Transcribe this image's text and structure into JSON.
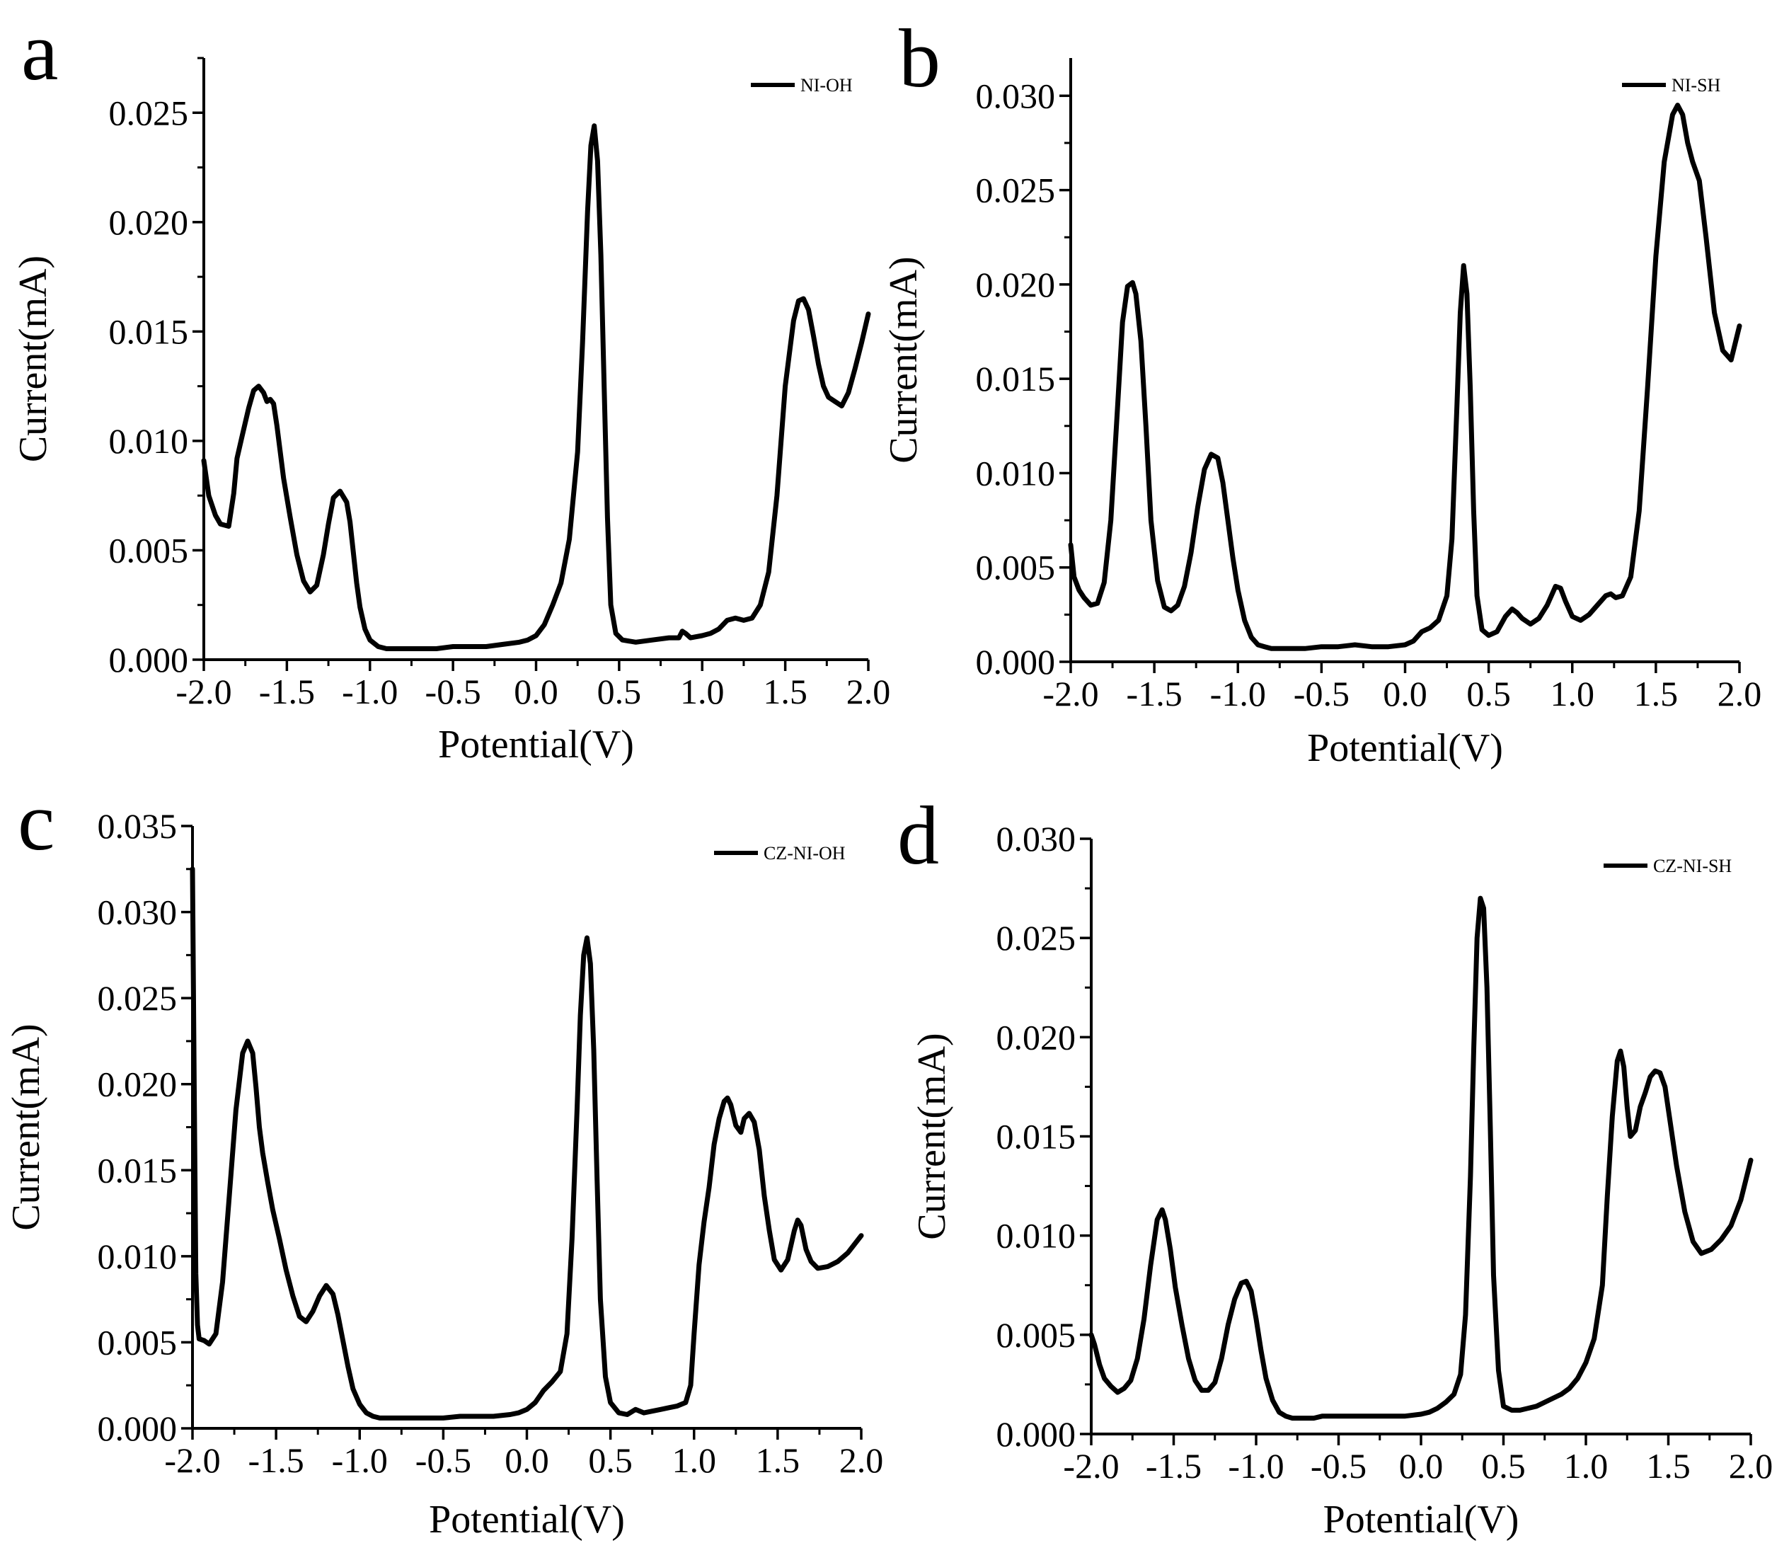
{
  "figure": {
    "description_free": true
  },
  "chart_data": [
    {
      "type": "line",
      "panel_label": "a",
      "title": "",
      "xlabel": "Potential(V)",
      "ylabel": "Current(mA)",
      "xlim": [
        -2.0,
        2.0
      ],
      "ylim": [
        0.0,
        0.0275
      ],
      "xticks": [
        -2.0,
        -1.5,
        -1.0,
        -0.5,
        0.0,
        0.5,
        1.0,
        1.5,
        2.0
      ],
      "xtick_labels": [
        "-2.0",
        "-1.5",
        "-1.0",
        "-0.5",
        "0.0",
        "0.5",
        "1.0",
        "1.5",
        "2.0"
      ],
      "yticks": [
        0.0,
        0.005,
        0.01,
        0.015,
        0.02,
        0.025
      ],
      "ytick_labels": [
        "0.000",
        "0.005",
        "0.010",
        "0.015",
        "0.020",
        "0.025"
      ],
      "legend_position": "top-right",
      "series": [
        {
          "name": "NI-OH",
          "color": "#000000",
          "x": [
            -2.0,
            -1.97,
            -1.93,
            -1.9,
            -1.85,
            -1.82,
            -1.8,
            -1.77,
            -1.73,
            -1.7,
            -1.67,
            -1.64,
            -1.62,
            -1.6,
            -1.58,
            -1.56,
            -1.54,
            -1.52,
            -1.48,
            -1.44,
            -1.4,
            -1.36,
            -1.32,
            -1.28,
            -1.25,
            -1.22,
            -1.18,
            -1.14,
            -1.12,
            -1.1,
            -1.08,
            -1.06,
            -1.03,
            -1.0,
            -0.95,
            -0.9,
            -0.85,
            -0.8,
            -0.75,
            -0.7,
            -0.6,
            -0.5,
            -0.4,
            -0.3,
            -0.2,
            -0.1,
            -0.05,
            0.0,
            0.05,
            0.1,
            0.15,
            0.2,
            0.25,
            0.28,
            0.31,
            0.33,
            0.35,
            0.37,
            0.39,
            0.41,
            0.43,
            0.45,
            0.48,
            0.52,
            0.6,
            0.7,
            0.8,
            0.86,
            0.88,
            0.9,
            0.93,
            1.0,
            1.05,
            1.1,
            1.15,
            1.2,
            1.25,
            1.3,
            1.35,
            1.4,
            1.45,
            1.5,
            1.55,
            1.58,
            1.61,
            1.64,
            1.67,
            1.7,
            1.73,
            1.76,
            1.8,
            1.84,
            1.88,
            1.92,
            1.96,
            2.0
          ],
          "y": [
            0.0091,
            0.0075,
            0.0066,
            0.0062,
            0.0061,
            0.0076,
            0.0092,
            0.0102,
            0.0115,
            0.0123,
            0.0125,
            0.0122,
            0.0118,
            0.0119,
            0.0117,
            0.0107,
            0.0095,
            0.0083,
            0.0065,
            0.0048,
            0.0036,
            0.0031,
            0.0034,
            0.0048,
            0.0062,
            0.0074,
            0.0077,
            0.0072,
            0.0063,
            0.0049,
            0.0035,
            0.0024,
            0.0014,
            0.0009,
            0.0006,
            0.0005,
            0.0005,
            0.0005,
            0.0005,
            0.0005,
            0.0005,
            0.0006,
            0.0006,
            0.0006,
            0.0007,
            0.0008,
            0.0009,
            0.0011,
            0.0016,
            0.0025,
            0.0035,
            0.0055,
            0.0095,
            0.0145,
            0.0205,
            0.0235,
            0.0244,
            0.0228,
            0.0185,
            0.0125,
            0.0065,
            0.0025,
            0.0012,
            0.0009,
            0.0008,
            0.0009,
            0.001,
            0.001,
            0.0013,
            0.0012,
            0.001,
            0.0011,
            0.0012,
            0.0014,
            0.0018,
            0.0019,
            0.0018,
            0.0019,
            0.0025,
            0.004,
            0.0075,
            0.0125,
            0.0155,
            0.0164,
            0.0165,
            0.016,
            0.0148,
            0.0135,
            0.0125,
            0.012,
            0.0118,
            0.0116,
            0.0122,
            0.0133,
            0.0145,
            0.0158
          ]
        }
      ]
    },
    {
      "type": "line",
      "panel_label": "b",
      "title": "",
      "xlabel": "Potential(V)",
      "ylabel": "Current(mA)",
      "xlim": [
        -2.0,
        2.0
      ],
      "ylim": [
        0.0,
        0.032
      ],
      "xticks": [
        -2.0,
        -1.5,
        -1.0,
        -0.5,
        0.0,
        0.5,
        1.0,
        1.5,
        2.0
      ],
      "xtick_labels": [
        "-2.0",
        "-1.5",
        "-1.0",
        "-0.5",
        "0.0",
        "0.5",
        "1.0",
        "1.5",
        "2.0"
      ],
      "yticks": [
        0.0,
        0.005,
        0.01,
        0.015,
        0.02,
        0.025,
        0.03
      ],
      "ytick_labels": [
        "0.000",
        "0.005",
        "0.010",
        "0.015",
        "0.020",
        "0.025",
        "0.030"
      ],
      "legend_position": "top-right",
      "series": [
        {
          "name": "NI-SH",
          "color": "#000000",
          "x": [
            -2.0,
            -1.98,
            -1.95,
            -1.92,
            -1.88,
            -1.84,
            -1.8,
            -1.76,
            -1.72,
            -1.69,
            -1.66,
            -1.63,
            -1.61,
            -1.58,
            -1.55,
            -1.52,
            -1.48,
            -1.44,
            -1.4,
            -1.36,
            -1.32,
            -1.28,
            -1.24,
            -1.2,
            -1.16,
            -1.12,
            -1.09,
            -1.06,
            -1.03,
            -1.0,
            -0.96,
            -0.92,
            -0.88,
            -0.84,
            -0.8,
            -0.75,
            -0.7,
            -0.6,
            -0.5,
            -0.4,
            -0.3,
            -0.2,
            -0.1,
            0.0,
            0.05,
            0.1,
            0.15,
            0.2,
            0.25,
            0.28,
            0.31,
            0.33,
            0.35,
            0.37,
            0.39,
            0.41,
            0.43,
            0.46,
            0.5,
            0.55,
            0.6,
            0.64,
            0.67,
            0.7,
            0.75,
            0.8,
            0.85,
            0.9,
            0.93,
            0.96,
            1.0,
            1.05,
            1.1,
            1.15,
            1.2,
            1.23,
            1.26,
            1.3,
            1.35,
            1.4,
            1.45,
            1.5,
            1.55,
            1.6,
            1.63,
            1.66,
            1.69,
            1.72,
            1.76,
            1.8,
            1.85,
            1.9,
            1.95,
            2.0
          ],
          "y": [
            0.0062,
            0.0045,
            0.0038,
            0.0034,
            0.003,
            0.0031,
            0.0042,
            0.0075,
            0.0135,
            0.018,
            0.0199,
            0.0201,
            0.0195,
            0.017,
            0.0125,
            0.0075,
            0.0043,
            0.0029,
            0.0027,
            0.003,
            0.004,
            0.0058,
            0.0082,
            0.0102,
            0.011,
            0.0108,
            0.0095,
            0.0075,
            0.0055,
            0.0038,
            0.0022,
            0.0013,
            0.0009,
            0.0008,
            0.0007,
            0.0007,
            0.0007,
            0.0007,
            0.0008,
            0.0008,
            0.0009,
            0.0008,
            0.0008,
            0.0009,
            0.0011,
            0.0016,
            0.0018,
            0.0022,
            0.0035,
            0.0065,
            0.0135,
            0.0185,
            0.021,
            0.0195,
            0.0145,
            0.008,
            0.0035,
            0.0017,
            0.0014,
            0.0016,
            0.0024,
            0.0028,
            0.0026,
            0.0023,
            0.002,
            0.0023,
            0.003,
            0.004,
            0.0039,
            0.0032,
            0.0024,
            0.0022,
            0.0025,
            0.003,
            0.0035,
            0.0036,
            0.0034,
            0.0035,
            0.0045,
            0.008,
            0.0145,
            0.0215,
            0.0265,
            0.029,
            0.0295,
            0.029,
            0.0275,
            0.0265,
            0.0255,
            0.0225,
            0.0185,
            0.0165,
            0.016,
            0.0178
          ]
        }
      ]
    },
    {
      "type": "line",
      "panel_label": "c",
      "title": "",
      "xlabel": "Potential(V)",
      "ylabel": "Current(mA)",
      "xlim": [
        -2.0,
        2.0
      ],
      "ylim": [
        0.0,
        0.035
      ],
      "xticks": [
        -2.0,
        -1.5,
        -1.0,
        -0.5,
        0.0,
        0.5,
        1.0,
        1.5,
        2.0
      ],
      "xtick_labels": [
        "-2.0",
        "-1.5",
        "-1.0",
        "-0.5",
        "0.0",
        "0.5",
        "1.0",
        "1.5",
        "2.0"
      ],
      "yticks": [
        0.0,
        0.005,
        0.01,
        0.015,
        0.02,
        0.025,
        0.03,
        0.035
      ],
      "ytick_labels": [
        "0.000",
        "0.005",
        "0.010",
        "0.015",
        "0.020",
        "0.025",
        "0.030",
        "0.035"
      ],
      "legend_position": "top-right",
      "series": [
        {
          "name": "CZ-NI-OH",
          "color": "#000000",
          "x": [
            -2.0,
            -1.99,
            -1.98,
            -1.97,
            -1.96,
            -1.93,
            -1.9,
            -1.86,
            -1.82,
            -1.78,
            -1.74,
            -1.7,
            -1.67,
            -1.64,
            -1.62,
            -1.6,
            -1.58,
            -1.55,
            -1.52,
            -1.48,
            -1.44,
            -1.4,
            -1.36,
            -1.32,
            -1.28,
            -1.24,
            -1.2,
            -1.16,
            -1.13,
            -1.1,
            -1.07,
            -1.04,
            -1.0,
            -0.96,
            -0.92,
            -0.88,
            -0.84,
            -0.8,
            -0.75,
            -0.7,
            -0.6,
            -0.5,
            -0.4,
            -0.3,
            -0.2,
            -0.1,
            -0.05,
            0.0,
            0.05,
            0.1,
            0.15,
            0.2,
            0.24,
            0.27,
            0.3,
            0.32,
            0.34,
            0.36,
            0.38,
            0.4,
            0.42,
            0.44,
            0.47,
            0.5,
            0.55,
            0.6,
            0.65,
            0.7,
            0.75,
            0.8,
            0.85,
            0.9,
            0.95,
            0.98,
            1.0,
            1.03,
            1.06,
            1.09,
            1.12,
            1.15,
            1.18,
            1.2,
            1.22,
            1.25,
            1.28,
            1.3,
            1.33,
            1.36,
            1.39,
            1.42,
            1.45,
            1.48,
            1.52,
            1.56,
            1.6,
            1.62,
            1.64,
            1.67,
            1.7,
            1.74,
            1.8,
            1.86,
            1.92,
            2.0
          ],
          "y": [
            0.0325,
            0.02,
            0.009,
            0.006,
            0.0052,
            0.0051,
            0.0049,
            0.0055,
            0.0085,
            0.0135,
            0.0185,
            0.0218,
            0.0225,
            0.0218,
            0.0198,
            0.0175,
            0.016,
            0.0143,
            0.0127,
            0.011,
            0.0092,
            0.0077,
            0.0065,
            0.0062,
            0.0068,
            0.0077,
            0.0083,
            0.0078,
            0.0066,
            0.0051,
            0.0036,
            0.0023,
            0.0014,
            0.0009,
            0.0007,
            0.0006,
            0.0006,
            0.0006,
            0.0006,
            0.0006,
            0.0006,
            0.0006,
            0.0007,
            0.0007,
            0.0007,
            0.0008,
            0.0009,
            0.0011,
            0.0015,
            0.0022,
            0.0027,
            0.0033,
            0.0055,
            0.011,
            0.0185,
            0.024,
            0.0275,
            0.0285,
            0.027,
            0.022,
            0.0145,
            0.0075,
            0.003,
            0.0015,
            0.0009,
            0.0008,
            0.0011,
            0.0009,
            0.001,
            0.0011,
            0.0012,
            0.0013,
            0.0015,
            0.0025,
            0.0055,
            0.0095,
            0.012,
            0.014,
            0.0165,
            0.018,
            0.019,
            0.0192,
            0.0188,
            0.0176,
            0.0172,
            0.018,
            0.0183,
            0.0178,
            0.0162,
            0.0135,
            0.0115,
            0.0098,
            0.0092,
            0.0098,
            0.0115,
            0.0121,
            0.0118,
            0.0104,
            0.0097,
            0.0093,
            0.0094,
            0.0097,
            0.0102,
            0.0112
          ]
        }
      ]
    },
    {
      "type": "line",
      "panel_label": "d",
      "title": "",
      "xlabel": "Potential(V)",
      "ylabel": "Current(mA)",
      "xlim": [
        -2.0,
        2.0
      ],
      "ylim": [
        0.0,
        0.03
      ],
      "xticks": [
        -2.0,
        -1.5,
        -1.0,
        -0.5,
        0.0,
        0.5,
        1.0,
        1.5,
        2.0
      ],
      "xtick_labels": [
        "-2.0",
        "-1.5",
        "-1.0",
        "-0.5",
        "0.0",
        "0.5",
        "1.0",
        "1.5",
        "2.0"
      ],
      "yticks": [
        0.0,
        0.005,
        0.01,
        0.015,
        0.02,
        0.025,
        0.03
      ],
      "ytick_labels": [
        "0.000",
        "0.005",
        "0.010",
        "0.015",
        "0.020",
        "0.025",
        "0.030"
      ],
      "legend_position": "top-right",
      "series": [
        {
          "name": "CZ-NI-SH",
          "color": "#000000",
          "x": [
            -2.0,
            -1.98,
            -1.95,
            -1.92,
            -1.88,
            -1.84,
            -1.8,
            -1.76,
            -1.72,
            -1.68,
            -1.64,
            -1.6,
            -1.57,
            -1.55,
            -1.52,
            -1.49,
            -1.45,
            -1.41,
            -1.37,
            -1.33,
            -1.29,
            -1.25,
            -1.21,
            -1.17,
            -1.13,
            -1.09,
            -1.06,
            -1.03,
            -1.0,
            -0.97,
            -0.94,
            -0.9,
            -0.86,
            -0.82,
            -0.78,
            -0.74,
            -0.7,
            -0.65,
            -0.6,
            -0.5,
            -0.4,
            -0.3,
            -0.2,
            -0.1,
            0.0,
            0.05,
            0.1,
            0.15,
            0.2,
            0.24,
            0.27,
            0.3,
            0.32,
            0.34,
            0.36,
            0.38,
            0.4,
            0.42,
            0.44,
            0.47,
            0.5,
            0.55,
            0.6,
            0.65,
            0.7,
            0.75,
            0.8,
            0.85,
            0.9,
            0.95,
            1.0,
            1.05,
            1.1,
            1.13,
            1.16,
            1.19,
            1.21,
            1.23,
            1.25,
            1.27,
            1.3,
            1.33,
            1.36,
            1.39,
            1.42,
            1.45,
            1.48,
            1.51,
            1.55,
            1.6,
            1.65,
            1.7,
            1.76,
            1.82,
            1.88,
            1.94,
            2.0
          ],
          "y": [
            0.005,
            0.0045,
            0.0035,
            0.0028,
            0.0024,
            0.0021,
            0.0023,
            0.0027,
            0.0038,
            0.0058,
            0.0085,
            0.0108,
            0.0113,
            0.0108,
            0.0093,
            0.0074,
            0.0055,
            0.0038,
            0.0027,
            0.0022,
            0.0022,
            0.0026,
            0.0038,
            0.0055,
            0.0068,
            0.0076,
            0.0077,
            0.0072,
            0.0058,
            0.0042,
            0.0028,
            0.0017,
            0.0011,
            0.0009,
            0.0008,
            0.0008,
            0.0008,
            0.0008,
            0.0009,
            0.0009,
            0.0009,
            0.0009,
            0.0009,
            0.0009,
            0.001,
            0.0011,
            0.0013,
            0.0016,
            0.002,
            0.003,
            0.006,
            0.013,
            0.0195,
            0.025,
            0.027,
            0.0265,
            0.0225,
            0.0155,
            0.008,
            0.0032,
            0.0014,
            0.0012,
            0.0012,
            0.0013,
            0.0014,
            0.0016,
            0.0018,
            0.002,
            0.0023,
            0.0028,
            0.0036,
            0.0048,
            0.0075,
            0.012,
            0.016,
            0.0188,
            0.0193,
            0.0185,
            0.0165,
            0.015,
            0.0153,
            0.0165,
            0.0172,
            0.018,
            0.0183,
            0.0182,
            0.0175,
            0.0158,
            0.0135,
            0.0112,
            0.0097,
            0.0091,
            0.0093,
            0.0098,
            0.0105,
            0.0118,
            0.0138
          ]
        }
      ]
    }
  ]
}
